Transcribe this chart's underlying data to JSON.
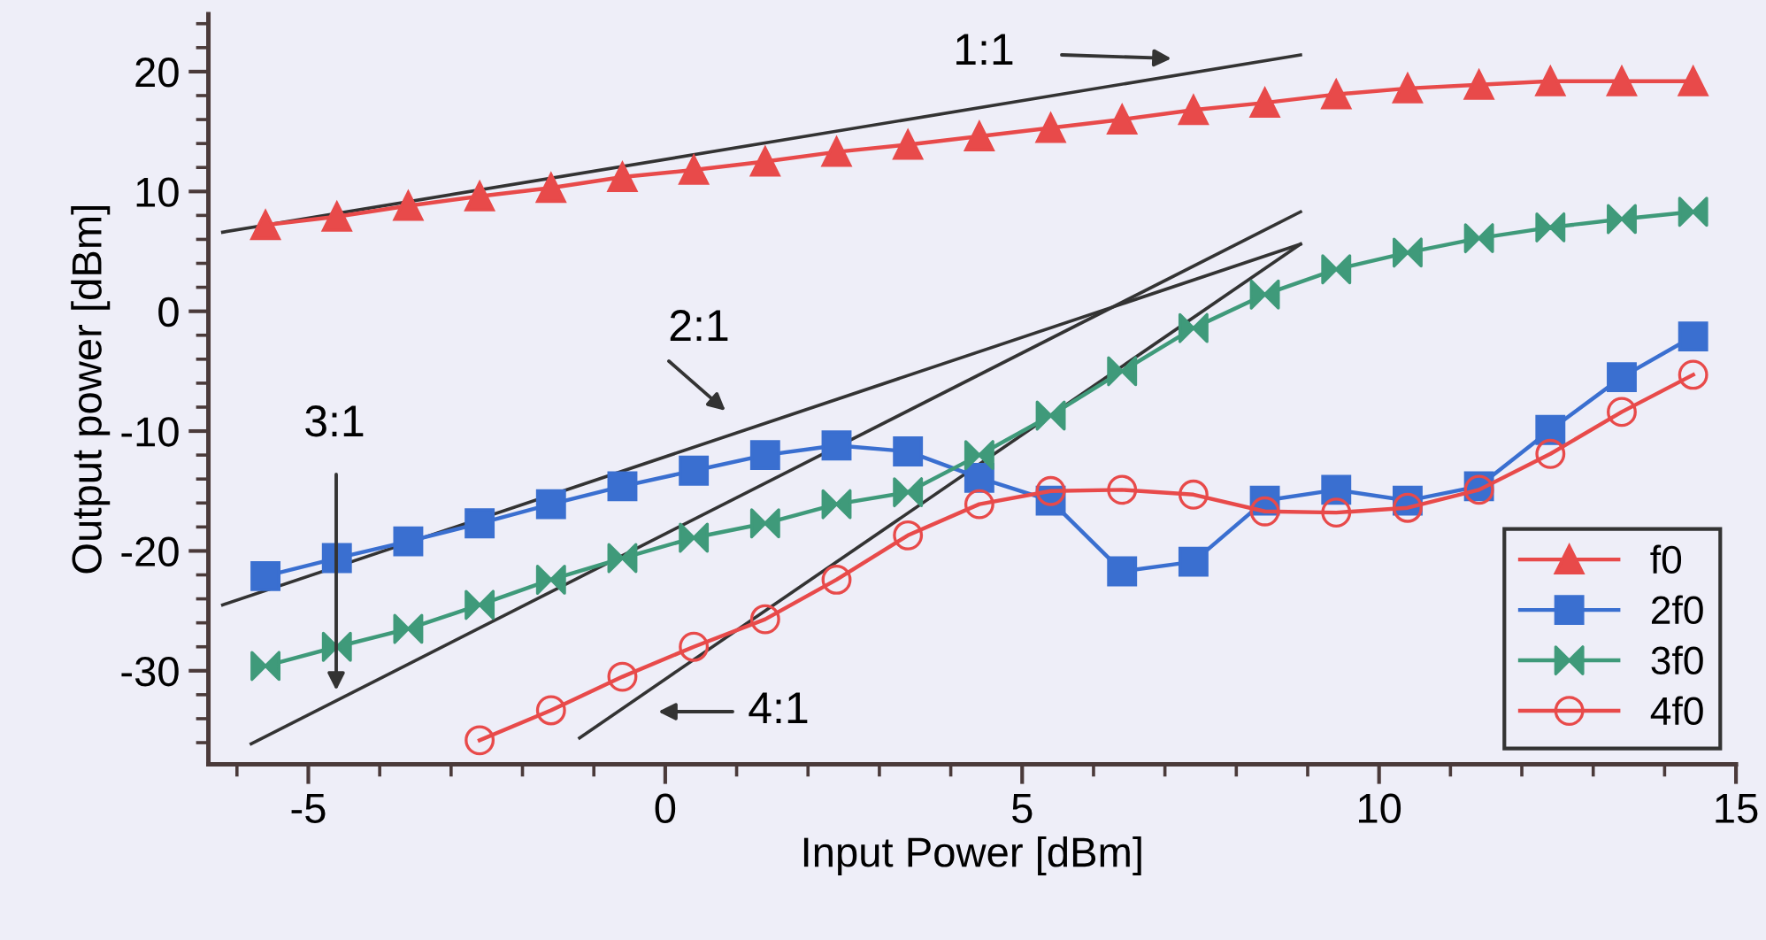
{
  "chart_data": {
    "type": "line",
    "xlabel": "Input Power [dBm]",
    "ylabel": "Output power [dBm]",
    "xlim": [
      -6.4,
      15
    ],
    "xticks": [
      -5,
      0,
      5,
      10,
      15
    ],
    "ylim": [
      -37.8,
      24.8
    ],
    "yticks": [
      -30,
      -20,
      -10,
      0,
      10,
      20
    ],
    "grid": false,
    "legend": "bottom right",
    "series": [
      {
        "name": "f0",
        "color": "#e84a4a",
        "marker": "triangle",
        "x": [
          -5.6,
          -4.6,
          -3.6,
          -2.6,
          -1.6,
          -0.6,
          0.4,
          1.4,
          2.4,
          3.4,
          4.4,
          5.4,
          6.4,
          7.4,
          8.4,
          9.4,
          10.4,
          11.4,
          12.4,
          13.4,
          14.4
        ],
        "values": [
          7.2,
          7.9,
          8.8,
          9.6,
          10.3,
          11.2,
          11.8,
          12.5,
          13.3,
          13.9,
          14.6,
          15.3,
          16.0,
          16.8,
          17.4,
          18.1,
          18.6,
          18.9,
          19.2,
          19.2,
          19.2
        ]
      },
      {
        "name": "2f0",
        "color": "#3a6fd0",
        "marker": "square",
        "x": [
          -5.6,
          -4.6,
          -3.6,
          -2.6,
          -1.6,
          -0.6,
          0.4,
          1.4,
          2.4,
          3.4,
          4.4,
          5.4,
          6.4,
          7.4,
          8.4,
          9.4,
          10.4,
          11.4,
          12.4,
          13.4,
          14.4
        ],
        "values": [
          -22.1,
          -20.6,
          -19.2,
          -17.7,
          -16.1,
          -14.6,
          -13.3,
          -12.0,
          -11.2,
          -11.7,
          -13.9,
          -15.8,
          -21.7,
          -20.9,
          -15.8,
          -14.9,
          -15.8,
          -14.6,
          -9.9,
          -5.5,
          -2.1
        ]
      },
      {
        "name": "3f0",
        "color": "#3f9a7a",
        "marker": "cross",
        "x": [
          -5.6,
          -4.6,
          -3.6,
          -2.6,
          -1.6,
          -0.6,
          0.4,
          1.4,
          2.4,
          3.4,
          4.4,
          5.4,
          6.4,
          7.4,
          8.4,
          9.4,
          10.4,
          11.4,
          12.4,
          13.4,
          14.4
        ],
        "values": [
          -29.6,
          -28.0,
          -26.5,
          -24.5,
          -22.4,
          -20.6,
          -18.9,
          -17.7,
          -16.1,
          -15.1,
          -12.0,
          -8.7,
          -5.0,
          -1.4,
          1.4,
          3.5,
          4.9,
          6.1,
          7.0,
          7.7,
          8.3
        ]
      },
      {
        "name": "4f0",
        "color": "#e84a4a",
        "marker": "circle",
        "x": [
          -2.6,
          -1.6,
          -0.6,
          0.4,
          1.4,
          2.4,
          3.4,
          4.4,
          5.4,
          6.4,
          7.4,
          8.4,
          9.4,
          10.4,
          11.4,
          12.4,
          13.4,
          14.4
        ],
        "values": [
          -35.8,
          -33.3,
          -30.5,
          -28.0,
          -25.7,
          -22.4,
          -18.7,
          -16.1,
          -15.0,
          -14.9,
          -15.3,
          -16.7,
          -16.8,
          -16.4,
          -14.9,
          -11.9,
          -8.4,
          -5.3
        ]
      },
      {
        "color": "#333333",
        "marker": "none",
        "x": [
          -6.2,
          8.9
        ],
        "values": [
          6.6,
          21.4
        ]
      },
      {
        "color": "#333333",
        "marker": "none",
        "x": [
          -6.2,
          8.9
        ],
        "values": [
          -24.5,
          5.6
        ]
      },
      {
        "color": "#333333",
        "marker": "none",
        "x": [
          -5.8,
          8.9
        ],
        "values": [
          -36.1,
          8.3
        ]
      },
      {
        "color": "#333333",
        "marker": "none",
        "x": [
          -1.2,
          8.9
        ],
        "values": [
          -35.6,
          5.6
        ]
      }
    ],
    "annotations": [
      "1:1",
      "2:1",
      "3:1",
      "4:1"
    ]
  }
}
